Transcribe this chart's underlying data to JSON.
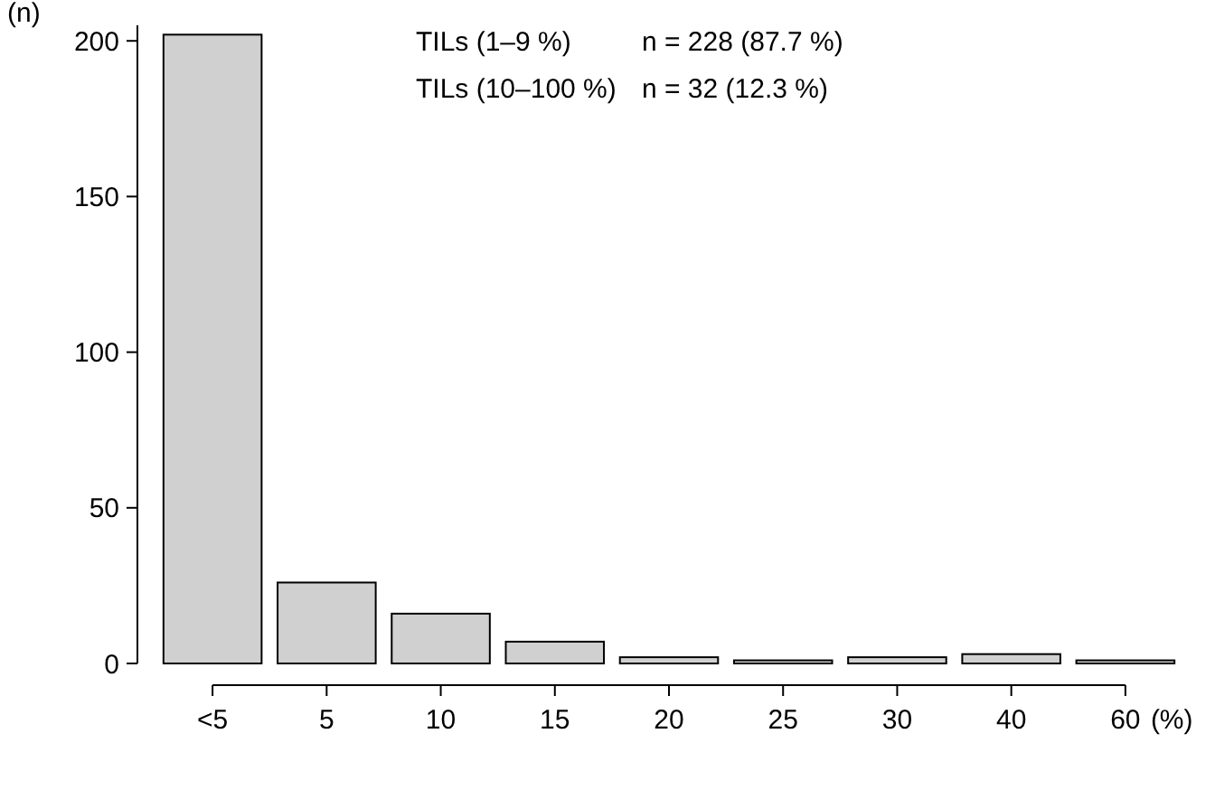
{
  "chart_data": {
    "type": "bar",
    "categories": [
      "<5",
      "5",
      "10",
      "15",
      "20",
      "25",
      "30",
      "40",
      "60"
    ],
    "values": [
      202,
      26,
      16,
      7,
      2,
      1,
      2,
      3,
      1
    ],
    "color": "#d0d0d0",
    "ylim": [
      0,
      205
    ],
    "yticks": [
      0,
      50,
      100,
      150,
      200
    ],
    "ylabel": "(n)",
    "xlabel": "(%)",
    "grid": false,
    "annotations": [
      "TILs (1–9 %)",
      "n = 228 (87.7 %)",
      "TILs (10–100 %)",
      "n = 32 (12.3 %)"
    ]
  }
}
